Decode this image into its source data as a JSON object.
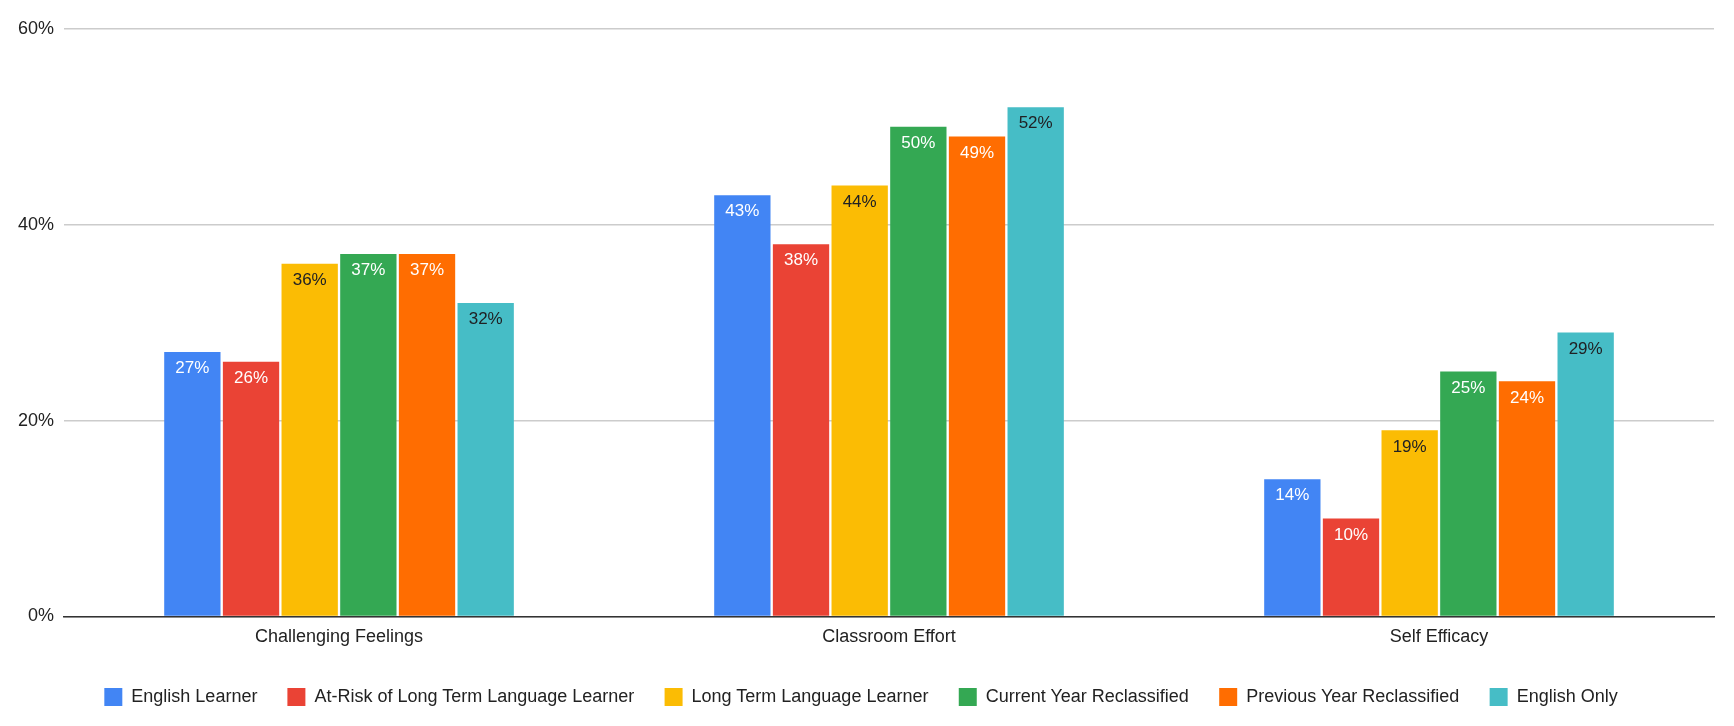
{
  "chart_data": {
    "type": "bar",
    "categories": [
      "Challenging Feelings",
      "Classroom Effort",
      "Self Efficacy"
    ],
    "series": [
      {
        "name": "English Learner",
        "color": "#4285f4",
        "values": [
          27,
          43,
          14
        ],
        "value_labels": [
          "27%",
          "43%",
          "14%"
        ]
      },
      {
        "name": "At-Risk of Long Term Language Learner",
        "color": "#ea4335",
        "values": [
          26,
          38,
          10
        ],
        "value_labels": [
          "26%",
          "38%",
          "10%"
        ]
      },
      {
        "name": "Long Term Language Learner",
        "color": "#fbbc04",
        "values": [
          36,
          44,
          19
        ],
        "value_labels": [
          "36%",
          "44%",
          "19%"
        ]
      },
      {
        "name": "Current Year Reclassified",
        "color": "#34a853",
        "values": [
          37,
          50,
          25
        ],
        "value_labels": [
          "37%",
          "50%",
          "25%"
        ]
      },
      {
        "name": "Previous Year Reclassified",
        "color": "#ff6d01",
        "values": [
          37,
          49,
          24
        ],
        "value_labels": [
          "37%",
          "49%",
          "24%"
        ]
      },
      {
        "name": "English Only",
        "color": "#46bdc6",
        "values": [
          32,
          52,
          29
        ],
        "value_labels": [
          "32%",
          "52%",
          "29%"
        ]
      }
    ],
    "ylim": [
      0,
      60
    ],
    "yticks": [
      {
        "value": 0,
        "label": "0%"
      },
      {
        "value": 20,
        "label": "20%"
      },
      {
        "value": 40,
        "label": "40%"
      },
      {
        "value": 60,
        "label": "60%"
      }
    ],
    "grid": "y",
    "legend": "bottom"
  }
}
